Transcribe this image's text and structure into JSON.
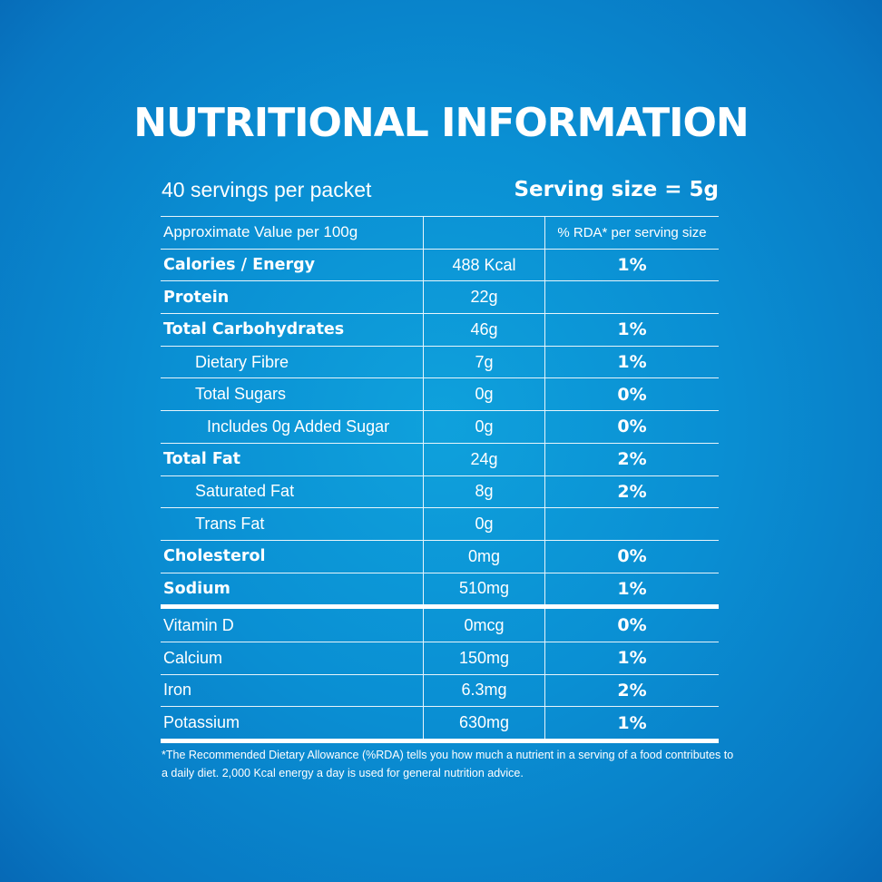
{
  "title": "NUTRITIONAL INFORMATION",
  "servings_per_packet": "40 servings per packet",
  "serving_size": "Serving size = 5g",
  "header": {
    "name": "Approximate Value per 100g",
    "value": "",
    "rda": "% RDA* per serving size"
  },
  "main_rows": [
    {
      "name": "Calories / Energy",
      "value": "488 Kcal",
      "rda": "1%",
      "style": "bold"
    },
    {
      "name": "Protein",
      "value": "22g",
      "rda": "",
      "style": "bold"
    },
    {
      "name": "Total Carbohydrates",
      "value": "46g",
      "rda": "1%",
      "style": "bold"
    },
    {
      "name": "Dietary Fibre",
      "value": "7g",
      "rda": "1%",
      "style": "indent1"
    },
    {
      "name": "Total Sugars",
      "value": "0g",
      "rda": "0%",
      "style": "indent1"
    },
    {
      "name": "Includes 0g Added Sugar",
      "value": "0g",
      "rda": "0%",
      "style": "indent2"
    },
    {
      "name": "Total Fat",
      "value": "24g",
      "rda": "2%",
      "style": "bold"
    },
    {
      "name": "Saturated Fat",
      "value": "8g",
      "rda": "2%",
      "style": "indent1"
    },
    {
      "name": "Trans Fat",
      "value": "0g",
      "rda": "",
      "style": "indent1"
    },
    {
      "name": "Cholesterol",
      "value": "0mg",
      "rda": "0%",
      "style": "bold"
    },
    {
      "name": "Sodium",
      "value": "510mg",
      "rda": "1%",
      "style": "bold"
    }
  ],
  "micro_rows": [
    {
      "name": "Vitamin D",
      "value": "0mcg",
      "rda": "0%",
      "style": "plain"
    },
    {
      "name": "Calcium",
      "value": "150mg",
      "rda": "1%",
      "style": "plain"
    },
    {
      "name": "Iron",
      "value": "6.3mg",
      "rda": "2%",
      "style": "plain"
    },
    {
      "name": "Potassium",
      "value": "630mg",
      "rda": "1%",
      "style": "plain"
    }
  ],
  "footnote": "*The Recommended Dietary Allowance (%RDA) tells you how much a nutrient in a serving of a food contributes to a daily diet. 2,000 Kcal energy a day is used for general nutrition advice."
}
